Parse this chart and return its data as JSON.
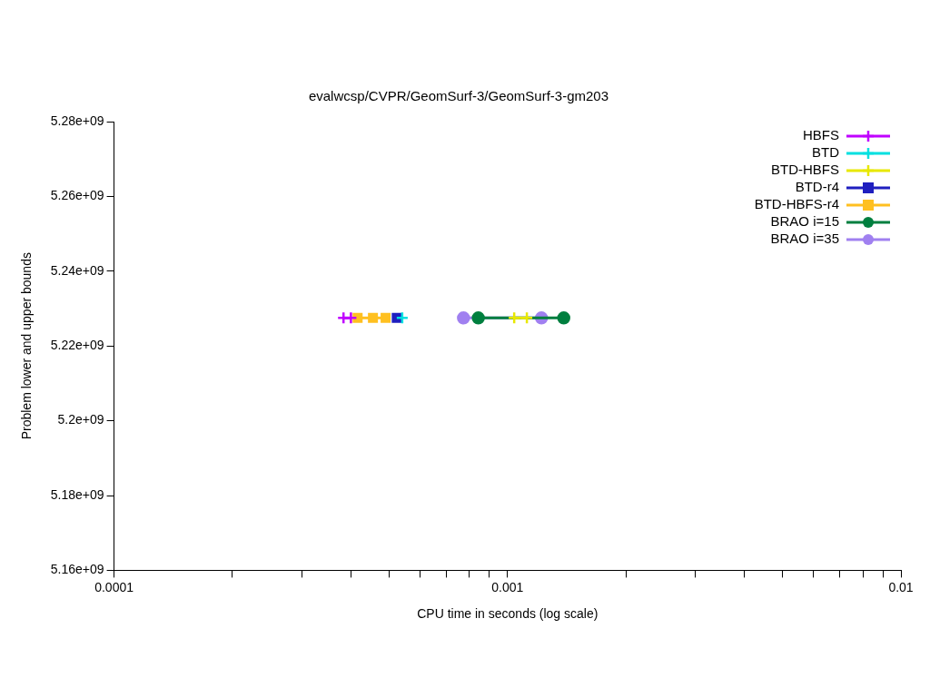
{
  "chart_data": {
    "type": "line",
    "title": "evalwcsp/CVPR/GeomSurf-3/GeomSurf-3-gm203",
    "xlabel": "CPU time in seconds (log scale)",
    "ylabel": "Problem lower and upper bounds",
    "log": "x",
    "grid": false,
    "legend": "top right",
    "line_style": "solid",
    "xlim": [
      0.0001,
      0.01
    ],
    "xticks": [
      0.0001,
      {
        "value": 0.0002,
        "label": null
      },
      {
        "value": 0.0003,
        "label": null
      },
      {
        "value": 0.0004,
        "label": null
      },
      {
        "value": 0.0005,
        "label": null
      },
      {
        "value": 0.0006,
        "label": null
      },
      {
        "value": 0.0007,
        "label": null
      },
      {
        "value": 0.0008,
        "label": null
      },
      {
        "value": 0.0009,
        "label": null
      },
      0.001,
      {
        "value": 0.002,
        "label": null
      },
      {
        "value": 0.003,
        "label": null
      },
      {
        "value": 0.004,
        "label": null
      },
      {
        "value": 0.005,
        "label": null
      },
      {
        "value": 0.006,
        "label": null
      },
      {
        "value": 0.007,
        "label": null
      },
      {
        "value": 0.008,
        "label": null
      },
      {
        "value": 0.009,
        "label": null
      },
      0.01
    ],
    "ylim": [
      5160000000,
      5280000000
    ],
    "yticks": [
      {
        "value": 5160000000,
        "label": "5.16e+09"
      },
      {
        "value": 5180000000,
        "label": "5.18e+09"
      },
      {
        "value": 5200000000,
        "label": "5.2e+09"
      },
      {
        "value": 5220000000,
        "label": "5.22e+09"
      },
      {
        "value": 5240000000,
        "label": "5.24e+09"
      },
      {
        "value": 5260000000,
        "label": "5.26e+09"
      },
      {
        "value": 5280000000,
        "label": "5.28e+09"
      }
    ],
    "series": [
      {
        "name": "HBFS",
        "color": "#c000ff",
        "marker": "cross",
        "x": [
          0.000383,
          0.0004
        ],
        "values": [
          5227500000,
          5227500000
        ]
      },
      {
        "name": "BTD",
        "color": "#00e0e0",
        "marker": "cross",
        "x": [
          0.00054
        ],
        "values": [
          5227500000
        ]
      },
      {
        "name": "BTD-HBFS",
        "color": "#e8e800",
        "marker": "cross",
        "x": [
          0.00104,
          0.00112
        ],
        "values": [
          5227500000,
          5227500000
        ]
      },
      {
        "name": "BTD-r4",
        "color": "#1f1fbf",
        "marker": "square",
        "x": [
          0.000523
        ],
        "values": [
          5227500000
        ]
      },
      {
        "name": "BTD-HBFS-r4",
        "color": "#ffc020",
        "marker": "square",
        "x": [
          0.000416,
          0.000455,
          0.00049
        ],
        "values": [
          5227500000,
          5227500000,
          5227500000
        ]
      },
      {
        "name": "BRAO i=15",
        "color": "#007f3f",
        "marker": "circle",
        "x": [
          0.000843,
          0.00139
        ],
        "values": [
          5227500000,
          5227500000
        ]
      },
      {
        "name": "BRAO i=35",
        "color": "#a080f0",
        "marker": "circle",
        "x": [
          0.000773,
          0.00122
        ],
        "values": [
          5227500000,
          5227500000
        ]
      }
    ]
  }
}
